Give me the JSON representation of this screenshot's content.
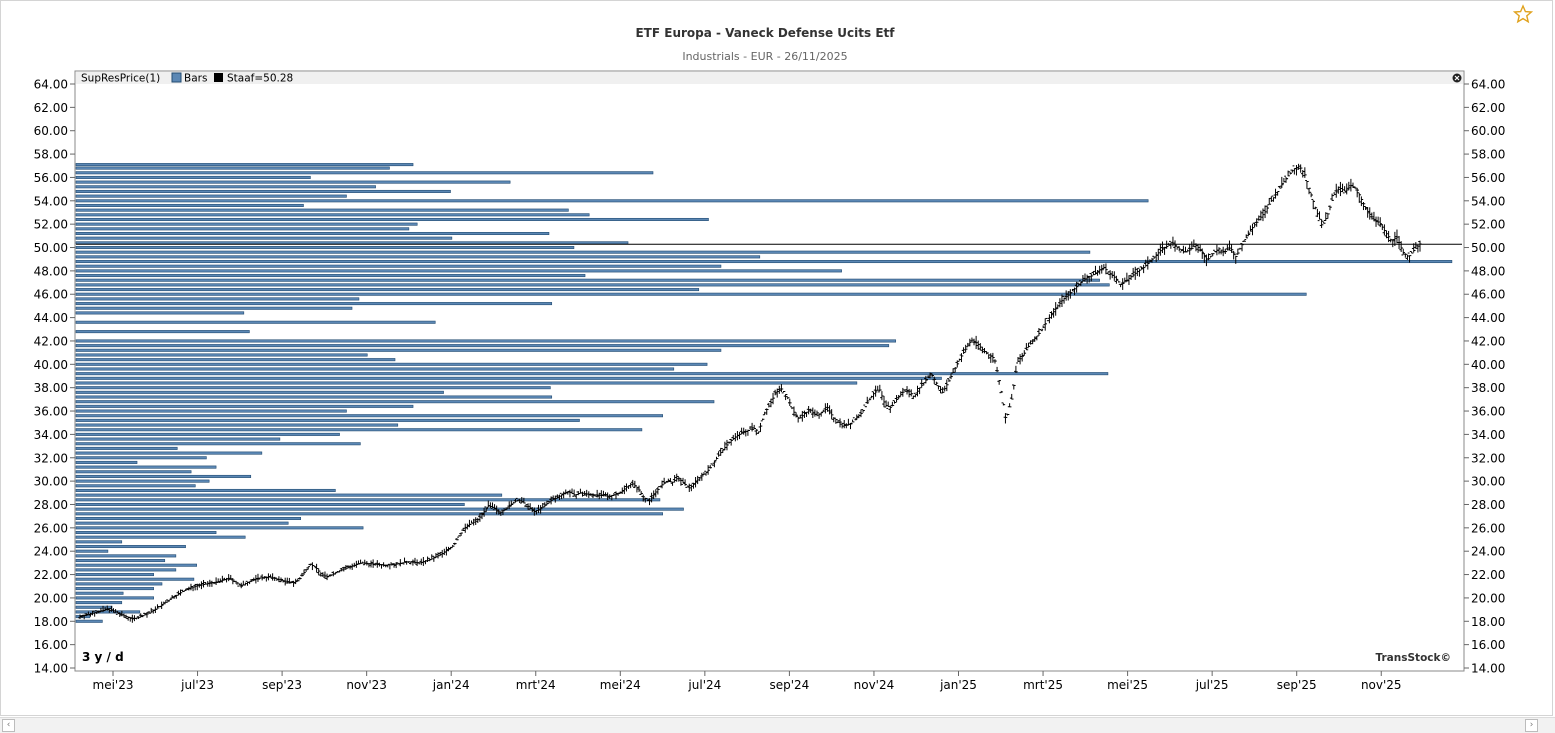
{
  "header": {
    "title": "ETF Europa - Vaneck Defense Ucits Etf",
    "subtitle": "Industrials - EUR - 26/11/2025"
  },
  "legend": {
    "indicator": "SupResPrice(1)",
    "bars_label": "Bars",
    "staaf_label": "Staaf=50.28"
  },
  "period_label": "3 y / d",
  "watermark": "TransStock©",
  "colors": {
    "profile_fill": "#5b87b4",
    "profile_stroke": "#234c72",
    "price": "#000000",
    "staaf": "#000000",
    "axis_text": "#000000",
    "title": "#333333",
    "subtitle": "#666666"
  },
  "chart_data": {
    "type": "price-bars-with-volume-profile",
    "title": "ETF Europa - Vaneck Defense Ucits Etf",
    "subtitle": "Industrials - EUR - 26/11/2025",
    "ylim": [
      14,
      64
    ],
    "y_ticks": [
      "64.00",
      "62.00",
      "60.00",
      "58.00",
      "56.00",
      "54.00",
      "52.00",
      "50.00",
      "48.00",
      "46.00",
      "44.00",
      "42.00",
      "40.00",
      "38.00",
      "36.00",
      "34.00",
      "32.00",
      "30.00",
      "28.00",
      "26.00",
      "24.00",
      "22.00",
      "20.00",
      "18.00",
      "16.00",
      "14.00"
    ],
    "x_ticks": [
      "mei'23",
      "jul'23",
      "sep'23",
      "nov'23",
      "jan'24",
      "mrt'24",
      "mei'24",
      "jul'24",
      "sep'24",
      "nov'24",
      "jan'25",
      "mrt'25",
      "mei'25",
      "jul'25",
      "sep'25",
      "nov'25"
    ],
    "staaf": 50.28,
    "legend": [
      "SupResPrice(1)",
      "Bars",
      "Staaf=50.28"
    ],
    "grid": false,
    "price_path": [
      [
        0,
        18.4
      ],
      [
        3,
        18.8
      ],
      [
        5,
        19.1
      ],
      [
        7,
        18.6
      ],
      [
        9,
        18.2
      ],
      [
        10,
        18.3
      ],
      [
        12,
        18.7
      ],
      [
        14,
        19.3
      ],
      [
        16,
        20.0
      ],
      [
        18,
        20.6
      ],
      [
        20,
        21.0
      ],
      [
        22,
        21.2
      ],
      [
        24,
        21.4
      ],
      [
        26,
        21.7
      ],
      [
        27,
        21.4
      ],
      [
        28,
        21.0
      ],
      [
        29,
        21.3
      ],
      [
        31,
        21.7
      ],
      [
        33,
        21.8
      ],
      [
        35,
        21.5
      ],
      [
        37,
        21.3
      ],
      [
        38,
        21.5
      ],
      [
        39,
        22.2
      ],
      [
        40,
        22.9
      ],
      [
        41,
        22.6
      ],
      [
        42,
        22.0
      ],
      [
        43,
        21.8
      ],
      [
        45,
        22.3
      ],
      [
        47,
        22.7
      ],
      [
        49,
        23.0
      ],
      [
        51,
        22.9
      ],
      [
        53,
        22.8
      ],
      [
        55,
        22.9
      ],
      [
        57,
        23.1
      ],
      [
        59,
        23.0
      ],
      [
        61,
        23.3
      ],
      [
        63,
        23.8
      ],
      [
        65,
        24.5
      ],
      [
        66,
        25.4
      ],
      [
        67,
        26.0
      ],
      [
        68,
        26.4
      ],
      [
        69,
        26.6
      ],
      [
        70,
        27.2
      ],
      [
        71,
        27.9
      ],
      [
        72,
        27.7
      ],
      [
        73,
        27.3
      ],
      [
        74,
        27.6
      ],
      [
        75,
        28.0
      ],
      [
        76,
        28.4
      ],
      [
        77,
        28.2
      ],
      [
        78,
        27.8
      ],
      [
        79,
        27.4
      ],
      [
        80,
        27.6
      ],
      [
        81,
        28.0
      ],
      [
        82,
        28.4
      ],
      [
        83,
        28.6
      ],
      [
        84,
        28.9
      ],
      [
        85,
        29.1
      ],
      [
        86,
        28.8
      ],
      [
        87,
        29.0
      ],
      [
        88,
        28.9
      ],
      [
        90,
        28.8
      ],
      [
        92,
        28.7
      ],
      [
        94,
        29.0
      ],
      [
        95,
        29.5
      ],
      [
        96,
        29.8
      ],
      [
        97,
        29.4
      ],
      [
        98,
        28.6
      ],
      [
        99,
        28.3
      ],
      [
        100,
        29.0
      ],
      [
        101,
        29.6
      ],
      [
        102,
        30.0
      ],
      [
        103,
        29.9
      ],
      [
        104,
        30.3
      ],
      [
        105,
        29.8
      ],
      [
        106,
        29.4
      ],
      [
        107,
        29.9
      ],
      [
        108,
        30.4
      ],
      [
        109,
        30.8
      ],
      [
        110,
        31.4
      ],
      [
        111,
        32.2
      ],
      [
        112,
        32.8
      ],
      [
        113,
        33.4
      ],
      [
        114,
        33.8
      ],
      [
        115,
        34.1
      ],
      [
        116,
        34.3
      ],
      [
        117,
        34.6
      ],
      [
        118,
        34.2
      ],
      [
        119,
        35.8
      ],
      [
        120,
        36.6
      ],
      [
        121,
        37.6
      ],
      [
        122,
        37.9
      ],
      [
        123,
        37.2
      ],
      [
        124,
        36.0
      ],
      [
        125,
        35.3
      ],
      [
        126,
        35.8
      ],
      [
        127,
        36.1
      ],
      [
        128,
        35.6
      ],
      [
        129,
        35.9
      ],
      [
        130,
        36.3
      ],
      [
        131,
        35.4
      ],
      [
        132,
        35.1
      ],
      [
        133,
        34.8
      ],
      [
        134,
        34.9
      ],
      [
        135,
        35.4
      ],
      [
        136,
        35.9
      ],
      [
        137,
        36.8
      ],
      [
        138,
        37.5
      ],
      [
        139,
        37.9
      ],
      [
        140,
        36.5
      ],
      [
        141,
        36.3
      ],
      [
        142,
        37.0
      ],
      [
        143,
        37.6
      ],
      [
        144,
        37.8
      ],
      [
        145,
        37.2
      ],
      [
        146,
        38.0
      ],
      [
        147,
        38.6
      ],
      [
        148,
        39.2
      ],
      [
        149,
        38.3
      ],
      [
        150,
        37.6
      ],
      [
        151,
        38.5
      ],
      [
        152,
        39.5
      ],
      [
        153,
        40.5
      ],
      [
        154,
        41.3
      ],
      [
        155,
        42.1
      ],
      [
        156,
        41.8
      ],
      [
        157,
        41.2
      ],
      [
        158,
        40.8
      ],
      [
        159,
        40.5
      ],
      [
        160,
        38.2
      ],
      [
        161,
        35.2
      ],
      [
        162,
        37.0
      ],
      [
        163,
        40.2
      ],
      [
        164,
        40.8
      ],
      [
        165,
        41.6
      ],
      [
        166,
        42.2
      ],
      [
        167,
        42.8
      ],
      [
        168,
        43.6
      ],
      [
        169,
        44.3
      ],
      [
        170,
        45.0
      ],
      [
        171,
        45.6
      ],
      [
        172,
        46.0
      ],
      [
        173,
        46.5
      ],
      [
        174,
        47.0
      ],
      [
        175,
        47.4
      ],
      [
        176,
        47.6
      ],
      [
        177,
        48.0
      ],
      [
        178,
        48.3
      ],
      [
        179,
        47.8
      ],
      [
        180,
        47.4
      ],
      [
        181,
        46.8
      ],
      [
        182,
        47.2
      ],
      [
        183,
        47.6
      ],
      [
        184,
        48.0
      ],
      [
        185,
        48.3
      ],
      [
        186,
        48.8
      ],
      [
        187,
        49.3
      ],
      [
        188,
        49.8
      ],
      [
        189,
        50.1
      ],
      [
        190,
        50.4
      ],
      [
        191,
        49.9
      ],
      [
        192,
        49.6
      ],
      [
        193,
        49.8
      ],
      [
        194,
        50.2
      ],
      [
        195,
        49.7
      ],
      [
        196,
        48.9
      ],
      [
        197,
        49.5
      ],
      [
        198,
        49.9
      ],
      [
        199,
        49.6
      ],
      [
        200,
        50.0
      ],
      [
        201,
        49.2
      ],
      [
        202,
        50.2
      ],
      [
        203,
        51.0
      ],
      [
        204,
        51.8
      ],
      [
        205,
        52.4
      ],
      [
        206,
        53.0
      ],
      [
        207,
        53.9
      ],
      [
        208,
        54.6
      ],
      [
        209,
        55.4
      ],
      [
        210,
        56.1
      ],
      [
        211,
        56.7
      ],
      [
        212,
        57.0
      ],
      [
        213,
        56.2
      ],
      [
        214,
        54.6
      ],
      [
        215,
        53.1
      ],
      [
        216,
        51.8
      ],
      [
        217,
        52.9
      ],
      [
        218,
        54.5
      ],
      [
        219,
        55.1
      ],
      [
        220,
        54.8
      ],
      [
        221,
        55.3
      ],
      [
        222,
        55.0
      ],
      [
        223,
        53.9
      ],
      [
        224,
        53.0
      ],
      [
        225,
        52.4
      ],
      [
        226,
        52.1
      ],
      [
        227,
        51.3
      ],
      [
        228,
        50.6
      ],
      [
        229,
        50.9
      ],
      [
        230,
        49.6
      ],
      [
        231,
        49.2
      ],
      [
        232,
        49.8
      ],
      [
        233,
        50.3
      ]
    ],
    "volume_profile": [
      [
        57.1,
        0.243
      ],
      [
        56.8,
        0.226
      ],
      [
        56.4,
        0.416
      ],
      [
        56.0,
        0.169
      ],
      [
        55.6,
        0.313
      ],
      [
        55.2,
        0.216
      ],
      [
        54.8,
        0.27
      ],
      [
        54.4,
        0.195
      ],
      [
        54.0,
        0.773
      ],
      [
        53.6,
        0.164
      ],
      [
        53.2,
        0.355
      ],
      [
        52.8,
        0.37
      ],
      [
        52.4,
        0.456
      ],
      [
        52.0,
        0.246
      ],
      [
        51.6,
        0.24
      ],
      [
        51.2,
        0.341
      ],
      [
        50.8,
        0.271
      ],
      [
        50.4,
        0.398
      ],
      [
        50.0,
        0.359
      ],
      [
        49.6,
        0.731
      ],
      [
        49.2,
        0.493
      ],
      [
        48.8,
        0.992
      ],
      [
        48.4,
        0.465
      ],
      [
        48.0,
        0.552
      ],
      [
        47.6,
        0.367
      ],
      [
        47.2,
        0.738
      ],
      [
        46.8,
        0.745
      ],
      [
        46.4,
        0.449
      ],
      [
        46.0,
        0.887
      ],
      [
        45.6,
        0.204
      ],
      [
        45.2,
        0.343
      ],
      [
        44.8,
        0.199
      ],
      [
        44.4,
        0.121
      ],
      [
        43.6,
        0.259
      ],
      [
        42.8,
        0.125
      ],
      [
        42.0,
        0.591
      ],
      [
        41.6,
        0.586
      ],
      [
        41.2,
        0.465
      ],
      [
        40.8,
        0.21
      ],
      [
        40.4,
        0.23
      ],
      [
        40.0,
        0.455
      ],
      [
        39.6,
        0.431
      ],
      [
        39.2,
        0.744
      ],
      [
        38.8,
        0.624
      ],
      [
        38.4,
        0.563
      ],
      [
        38.0,
        0.342
      ],
      [
        37.6,
        0.265
      ],
      [
        37.2,
        0.343
      ],
      [
        36.8,
        0.46
      ],
      [
        36.4,
        0.243
      ],
      [
        36.0,
        0.195
      ],
      [
        35.6,
        0.423
      ],
      [
        35.2,
        0.363
      ],
      [
        34.8,
        0.232
      ],
      [
        34.4,
        0.408
      ],
      [
        34.0,
        0.19
      ],
      [
        33.6,
        0.147
      ],
      [
        33.2,
        0.205
      ],
      [
        32.8,
        0.073
      ],
      [
        32.4,
        0.134
      ],
      [
        32.0,
        0.094
      ],
      [
        31.6,
        0.044
      ],
      [
        31.2,
        0.101
      ],
      [
        30.8,
        0.083
      ],
      [
        30.4,
        0.126
      ],
      [
        30.0,
        0.096
      ],
      [
        29.6,
        0.086
      ],
      [
        29.2,
        0.187
      ],
      [
        28.8,
        0.307
      ],
      [
        28.4,
        0.421
      ],
      [
        28.0,
        0.28
      ],
      [
        27.6,
        0.438
      ],
      [
        27.2,
        0.423
      ],
      [
        26.8,
        0.162
      ],
      [
        26.4,
        0.153
      ],
      [
        26.0,
        0.207
      ],
      [
        25.6,
        0.101
      ],
      [
        25.2,
        0.122
      ],
      [
        24.8,
        0.033
      ],
      [
        24.4,
        0.079
      ],
      [
        24.0,
        0.023
      ],
      [
        23.6,
        0.072
      ],
      [
        23.2,
        0.064
      ],
      [
        22.8,
        0.087
      ],
      [
        22.4,
        0.072
      ],
      [
        22.0,
        0.056
      ],
      [
        21.6,
        0.085
      ],
      [
        21.2,
        0.062
      ],
      [
        20.8,
        0.056
      ],
      [
        20.4,
        0.034
      ],
      [
        20.0,
        0.056
      ],
      [
        19.6,
        0.033
      ],
      [
        19.2,
        0.026
      ],
      [
        18.8,
        0.046
      ],
      [
        18.4,
        0.01
      ],
      [
        18.0,
        0.019
      ]
    ]
  }
}
